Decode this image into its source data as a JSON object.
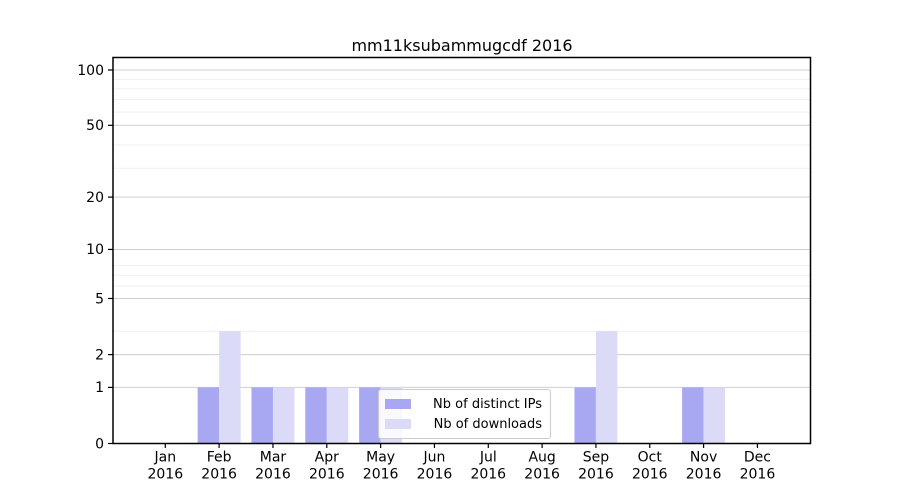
{
  "chart_data": {
    "type": "bar",
    "title": "mm11ksubammugcdf 2016",
    "categories": [
      "Jan 2016",
      "Feb 2016",
      "Mar 2016",
      "Apr 2016",
      "May 2016",
      "Jun 2016",
      "Jul 2016",
      "Aug 2016",
      "Sep 2016",
      "Oct 2016",
      "Nov 2016",
      "Dec 2016"
    ],
    "series": [
      {
        "name": "Nb of distinct IPs",
        "color": "#a8a8f2",
        "values": [
          0,
          1,
          1,
          1,
          1,
          0,
          0,
          0,
          1,
          0,
          1,
          0
        ]
      },
      {
        "name": "Nb of downloads",
        "color": "#dbdbf8",
        "values": [
          0,
          3,
          1,
          1,
          1,
          0,
          0,
          0,
          3,
          0,
          1,
          0
        ]
      }
    ],
    "y_ticks": [
      0,
      1,
      2,
      5,
      10,
      20,
      50,
      100
    ],
    "y_scale": "log10(1+y)",
    "ylim": [
      0,
      118
    ],
    "xlabel": "",
    "ylabel": "",
    "grid": true,
    "legend_position": "lower center",
    "legend_labels": [
      "Nb of distinct IPs",
      "Nb of downloads"
    ]
  },
  "colors": {
    "background": "#ffffff",
    "axis": "#000000",
    "grid_major": "#cfcfcf",
    "grid_minor": "#efefef",
    "text": "#000000",
    "bar_distinct_ips": "#a8a8f2",
    "bar_downloads": "#dbdbf8"
  }
}
